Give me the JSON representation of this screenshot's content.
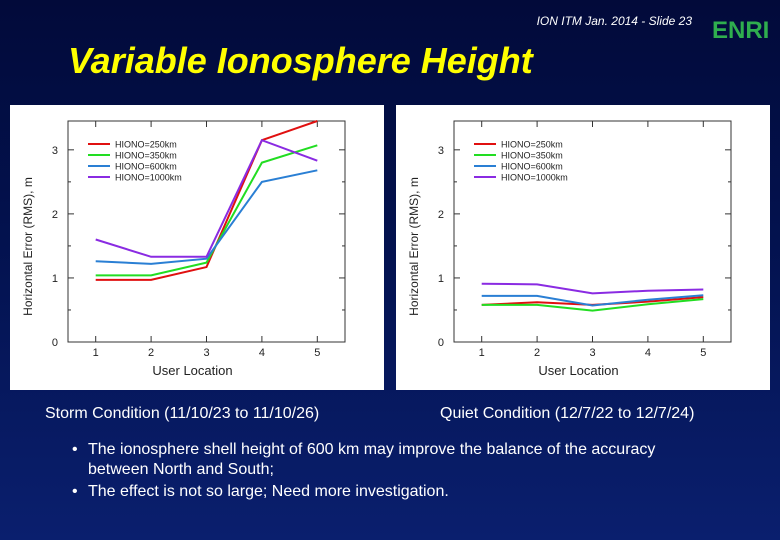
{
  "header": {
    "slide_label": "ION ITM Jan. 2014 - Slide 23",
    "logo_text": "ENRI"
  },
  "title": "Variable Ionosphere Height",
  "colors": {
    "title": "#ffff00",
    "background": "#03124f",
    "logo": "#2fae4e"
  },
  "chart_data": [
    {
      "type": "line",
      "title": "",
      "xlabel": "User Location",
      "ylabel": "Horizontal Error (RMS), m",
      "categories": [
        "1",
        "2",
        "3",
        "4",
        "5"
      ],
      "xticks": [
        "1",
        "2",
        "3",
        "4",
        "5"
      ],
      "yticks": [
        "0",
        "1",
        "2",
        "3"
      ],
      "xlim": [
        0.5,
        5.5
      ],
      "ylim": [
        0,
        3.45
      ],
      "legend_position": "top-left",
      "series": [
        {
          "name": "HIONO=250km",
          "color": "#e01010",
          "values": [
            0.97,
            0.97,
            1.17,
            3.15,
            3.45
          ]
        },
        {
          "name": "HIONO=350km",
          "color": "#22dd22",
          "values": [
            1.04,
            1.04,
            1.24,
            2.8,
            3.07
          ]
        },
        {
          "name": "HIONO=600km",
          "color": "#2a7fd4",
          "values": [
            1.26,
            1.22,
            1.3,
            2.5,
            2.68
          ]
        },
        {
          "name": "HIONO=1000km",
          "color": "#8a2be2",
          "values": [
            1.6,
            1.33,
            1.33,
            3.15,
            2.83
          ]
        }
      ]
    },
    {
      "type": "line",
      "title": "",
      "xlabel": "User Location",
      "ylabel": "Horizontal Error (RMS), m",
      "categories": [
        "1",
        "2",
        "3",
        "4",
        "5"
      ],
      "xticks": [
        "1",
        "2",
        "3",
        "4",
        "5"
      ],
      "yticks": [
        "0",
        "1",
        "2",
        "3"
      ],
      "xlim": [
        0.5,
        5.5
      ],
      "ylim": [
        0,
        3.45
      ],
      "legend_position": "top-left",
      "series": [
        {
          "name": "HIONO=250km",
          "color": "#e01010",
          "values": [
            0.58,
            0.62,
            0.58,
            0.63,
            0.7
          ]
        },
        {
          "name": "HIONO=350km",
          "color": "#22dd22",
          "values": [
            0.58,
            0.58,
            0.49,
            0.59,
            0.67
          ]
        },
        {
          "name": "HIONO=600km",
          "color": "#2a7fd4",
          "values": [
            0.72,
            0.72,
            0.57,
            0.66,
            0.73
          ]
        },
        {
          "name": "HIONO=1000km",
          "color": "#8a2be2",
          "values": [
            0.91,
            0.9,
            0.76,
            0.8,
            0.82
          ]
        }
      ]
    }
  ],
  "captions": {
    "left": "Storm Condition (11/10/23 to 11/10/26)",
    "right": "Quiet Condition (12/7/22 to 12/7/24)"
  },
  "bullets": [
    "The ionosphere shell height of 600 km may improve the balance of the accuracy between North and South;",
    "The effect is not so large; Need more investigation."
  ]
}
